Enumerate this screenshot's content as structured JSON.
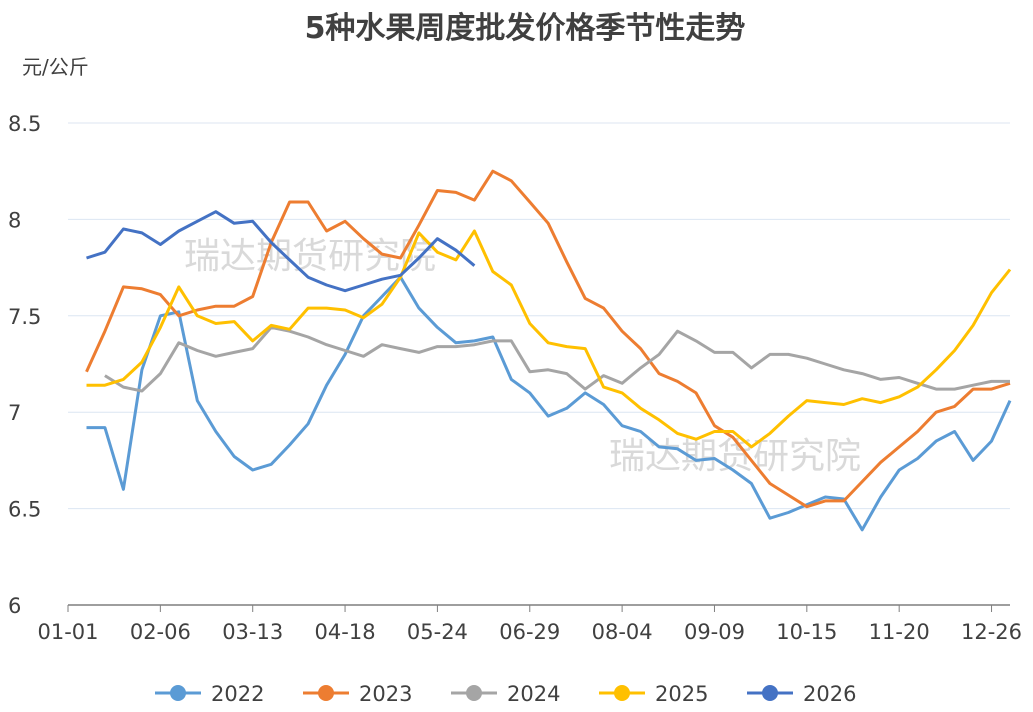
{
  "chart_data": {
    "type": "line",
    "title": "5种水果周度批发价格季节性走势",
    "y_label": "元/公斤",
    "watermarks": [
      "瑞达期货研究院",
      "瑞达期货研究院"
    ],
    "categories": [
      "01-01",
      null,
      null,
      null,
      null,
      "02-06",
      null,
      null,
      null,
      null,
      "03-13",
      null,
      null,
      null,
      null,
      "04-18",
      null,
      null,
      null,
      null,
      "05-24",
      null,
      null,
      null,
      null,
      "06-29",
      null,
      null,
      null,
      null,
      "08-04",
      null,
      null,
      null,
      null,
      "09-09",
      null,
      null,
      null,
      null,
      "10-15",
      null,
      null,
      null,
      null,
      "11-20",
      null,
      null,
      null,
      null,
      "12-26",
      null
    ],
    "ylim": [
      6,
      8.5
    ],
    "yticks": [
      6,
      6.5,
      7,
      7.5,
      8,
      8.5
    ],
    "grid": true,
    "legend": "bottom",
    "series": [
      {
        "name": "2022",
        "color": "#5b9bd5",
        "values": [
          null,
          6.92,
          6.92,
          6.6,
          7.22,
          7.5,
          7.52,
          7.06,
          6.9,
          6.77,
          6.7,
          6.73,
          6.83,
          6.94,
          7.14,
          7.3,
          7.5,
          7.6,
          7.7,
          7.54,
          7.44,
          7.36,
          7.37,
          7.39,
          7.17,
          7.1,
          6.98,
          7.02,
          7.1,
          7.04,
          6.93,
          6.9,
          6.82,
          6.81,
          6.75,
          6.76,
          6.7,
          6.63,
          6.45,
          6.48,
          6.52,
          6.56,
          6.55,
          6.39,
          6.56,
          6.7,
          6.76,
          6.85,
          6.9,
          6.75,
          6.85,
          7.06
        ]
      },
      {
        "name": "2023",
        "color": "#ed7d31",
        "values": [
          null,
          7.21,
          7.42,
          7.65,
          7.64,
          7.61,
          7.5,
          7.53,
          7.55,
          7.55,
          7.6,
          7.88,
          8.09,
          8.09,
          7.94,
          7.99,
          7.9,
          7.82,
          7.8,
          7.97,
          8.15,
          8.14,
          8.1,
          8.25,
          8.2,
          8.09,
          7.98,
          7.78,
          7.59,
          7.54,
          7.42,
          7.33,
          7.2,
          7.16,
          7.1,
          6.93,
          6.87,
          6.75,
          6.63,
          6.57,
          6.51,
          6.54,
          6.54,
          6.64,
          6.74,
          6.82,
          6.9,
          7.0,
          7.03,
          7.12,
          7.12,
          7.15
        ]
      },
      {
        "name": "2024",
        "color": "#a5a5a5",
        "values": [
          null,
          null,
          7.19,
          7.13,
          7.11,
          7.2,
          7.36,
          7.32,
          7.29,
          7.31,
          7.33,
          7.44,
          7.42,
          7.39,
          7.35,
          7.32,
          7.29,
          7.35,
          7.33,
          7.31,
          7.34,
          7.34,
          7.35,
          7.37,
          7.37,
          7.21,
          7.22,
          7.2,
          7.12,
          7.19,
          7.15,
          7.23,
          7.3,
          7.42,
          7.37,
          7.31,
          7.31,
          7.23,
          7.3,
          7.3,
          7.28,
          7.25,
          7.22,
          7.2,
          7.17,
          7.18,
          7.15,
          7.12,
          7.12,
          7.14,
          7.16,
          7.16
        ]
      },
      {
        "name": "2025",
        "color": "#ffc000",
        "values": [
          null,
          7.14,
          7.14,
          7.17,
          7.26,
          7.44,
          7.65,
          7.5,
          7.46,
          7.47,
          7.37,
          7.45,
          7.43,
          7.54,
          7.54,
          7.53,
          7.49,
          7.56,
          7.7,
          7.93,
          7.83,
          7.79,
          7.94,
          7.73,
          7.66,
          7.46,
          7.36,
          7.34,
          7.33,
          7.13,
          7.1,
          7.02,
          6.96,
          6.89,
          6.86,
          6.9,
          6.9,
          6.82,
          6.89,
          6.98,
          7.06,
          7.05,
          7.04,
          7.07,
          7.05,
          7.08,
          7.13,
          7.22,
          7.32,
          7.45,
          7.62,
          7.74
        ]
      },
      {
        "name": "2026",
        "color": "#4472c4",
        "values": [
          null,
          7.8,
          7.83,
          7.95,
          7.93,
          7.87,
          7.94,
          7.99,
          8.04,
          7.98,
          7.99,
          7.88,
          7.79,
          7.7,
          7.66,
          7.63,
          7.66,
          7.69,
          7.71,
          7.8,
          7.9,
          7.84,
          7.76,
          null,
          null,
          null,
          null,
          null,
          null,
          null,
          null,
          null,
          null,
          null,
          null,
          null,
          null,
          null,
          null,
          null,
          null,
          null,
          null,
          null,
          null,
          null,
          null,
          null,
          null,
          null,
          null,
          null
        ]
      }
    ]
  }
}
